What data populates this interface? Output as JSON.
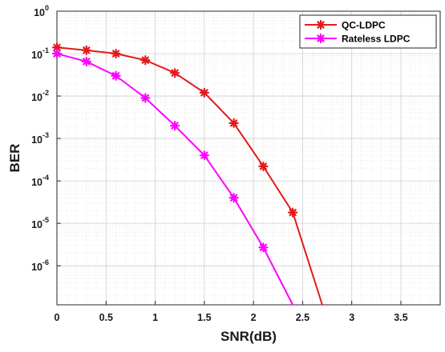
{
  "chart_data": {
    "type": "line",
    "title": "",
    "xlabel": "SNR(dB)",
    "ylabel": "BER",
    "xlim": [
      0,
      3.9
    ],
    "ylim": [
      1.2e-07,
      1
    ],
    "yscale": "log",
    "grid": true,
    "minor_grid": true,
    "legend_position": "top-right",
    "x_ticks": [
      0,
      0.5,
      1,
      1.5,
      2,
      2.5,
      3,
      3.5
    ],
    "x_tick_labels": [
      "0",
      "0.5",
      "1",
      "1.5",
      "2",
      "2.5",
      "3",
      "3.5"
    ],
    "y_ticks": [
      {
        "value": 1,
        "base": "10",
        "exp": "0"
      },
      {
        "value": 0.1,
        "base": "10",
        "exp": "-1"
      },
      {
        "value": 0.01,
        "base": "10",
        "exp": "-2"
      },
      {
        "value": 0.001,
        "base": "10",
        "exp": "-3"
      },
      {
        "value": 0.0001,
        "base": "10",
        "exp": "-4"
      },
      {
        "value": 1e-05,
        "base": "10",
        "exp": "-5"
      },
      {
        "value": 1e-06,
        "base": "10",
        "exp": "-6"
      }
    ],
    "series": [
      {
        "name": "QC-LDPC",
        "color": "#e31a1c",
        "marker": "asterisk",
        "x": [
          0,
          0.3,
          0.6,
          0.9,
          1.2,
          1.5,
          1.8,
          2.1,
          2.4,
          2.7
        ],
        "y": [
          0.14,
          0.12,
          0.1,
          0.07,
          0.035,
          0.012,
          0.0023,
          0.00022,
          1.8e-05,
          1.2e-07
        ],
        "marked": [
          true,
          true,
          true,
          true,
          true,
          true,
          true,
          true,
          true,
          false
        ]
      },
      {
        "name": "Rateless LDPC",
        "color": "#ff00ff",
        "marker": "asterisk",
        "x": [
          0,
          0.3,
          0.6,
          0.9,
          1.2,
          1.5,
          1.8,
          2.1,
          2.4
        ],
        "y": [
          0.1,
          0.065,
          0.03,
          0.009,
          0.002,
          0.0004,
          4e-05,
          2.7e-06,
          1.2e-07
        ],
        "marked": [
          true,
          true,
          true,
          true,
          true,
          true,
          true,
          true,
          false
        ]
      }
    ]
  }
}
